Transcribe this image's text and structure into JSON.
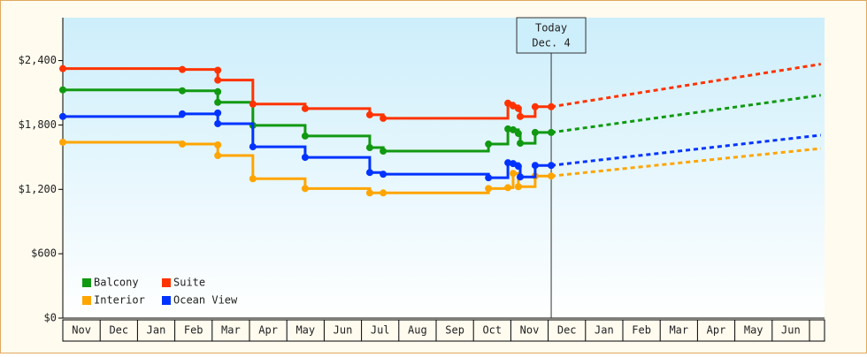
{
  "chart_data": {
    "type": "step-line",
    "categories": [
      "Nov",
      "Dec",
      "Jan",
      "Feb",
      "Mar",
      "Apr",
      "May",
      "Jun",
      "Jul",
      "Aug",
      "Sep",
      "Oct",
      "Nov",
      "Dec",
      "Jan",
      "Feb",
      "Mar",
      "Apr",
      "May",
      "Jun"
    ],
    "xlim": [
      0,
      20.4
    ],
    "ylim": [
      0,
      2800
    ],
    "yticks": [
      {
        "value": 0,
        "label": "$0"
      },
      {
        "value": 600,
        "label": "$600"
      },
      {
        "value": 1200,
        "label": "$1,200"
      },
      {
        "value": 1800,
        "label": "$1,800"
      },
      {
        "value": 2400,
        "label": "$2,400"
      }
    ],
    "today_x": 13.08,
    "today_label": "Today",
    "today_date": "Dec. 4",
    "forecast_x": [
      13.08,
      20.3
    ],
    "series": [
      {
        "name": "Balcony",
        "color": "#119911",
        "x": [
          0,
          3.2,
          4.15,
          4.15,
          5.09,
          6.49,
          8.22,
          8.58,
          11.4,
          11.92,
          12.06,
          12.2,
          12.25,
          12.65,
          13.08
        ],
        "values": [
          2127,
          2119,
          2110,
          2011,
          1796,
          1697,
          1589,
          1556,
          1622,
          1763,
          1755,
          1721,
          1630,
          1730,
          1730
        ],
        "forecast": [
          1730,
          2077
        ]
      },
      {
        "name": "Suite",
        "color": "#ff3300",
        "x": [
          0,
          3.2,
          4.15,
          4.15,
          5.09,
          6.49,
          8.22,
          8.58,
          11.92,
          12.06,
          12.2,
          12.25,
          12.65,
          13.08
        ],
        "values": [
          2325,
          2317,
          2310,
          2218,
          1995,
          1953,
          1895,
          1862,
          2003,
          1978,
          1953,
          1879,
          1970,
          1970
        ],
        "forecast": [
          1970,
          2367
        ]
      },
      {
        "name": "Interior",
        "color": "#ffa500",
        "x": [
          0,
          3.2,
          4.15,
          4.15,
          5.09,
          6.49,
          8.22,
          8.58,
          11.4,
          11.92,
          12.06,
          12.2,
          12.65,
          13.08
        ],
        "values": [
          1639,
          1622,
          1614,
          1515,
          1299,
          1208,
          1167,
          1167,
          1208,
          1216,
          1349,
          1225,
          1324,
          1324
        ],
        "forecast": [
          1324,
          1581
        ]
      },
      {
        "name": "Ocean View",
        "color": "#0033ff",
        "x": [
          0,
          3.2,
          4.15,
          4.15,
          5.09,
          6.49,
          8.22,
          8.58,
          11.4,
          11.92,
          12.06,
          12.2,
          12.25,
          12.65,
          13.08
        ],
        "values": [
          1879,
          1903,
          1912,
          1812,
          1597,
          1498,
          1357,
          1341,
          1308,
          1448,
          1440,
          1415,
          1316,
          1423,
          1423
        ],
        "forecast": [
          1423,
          1705
        ]
      }
    ]
  }
}
